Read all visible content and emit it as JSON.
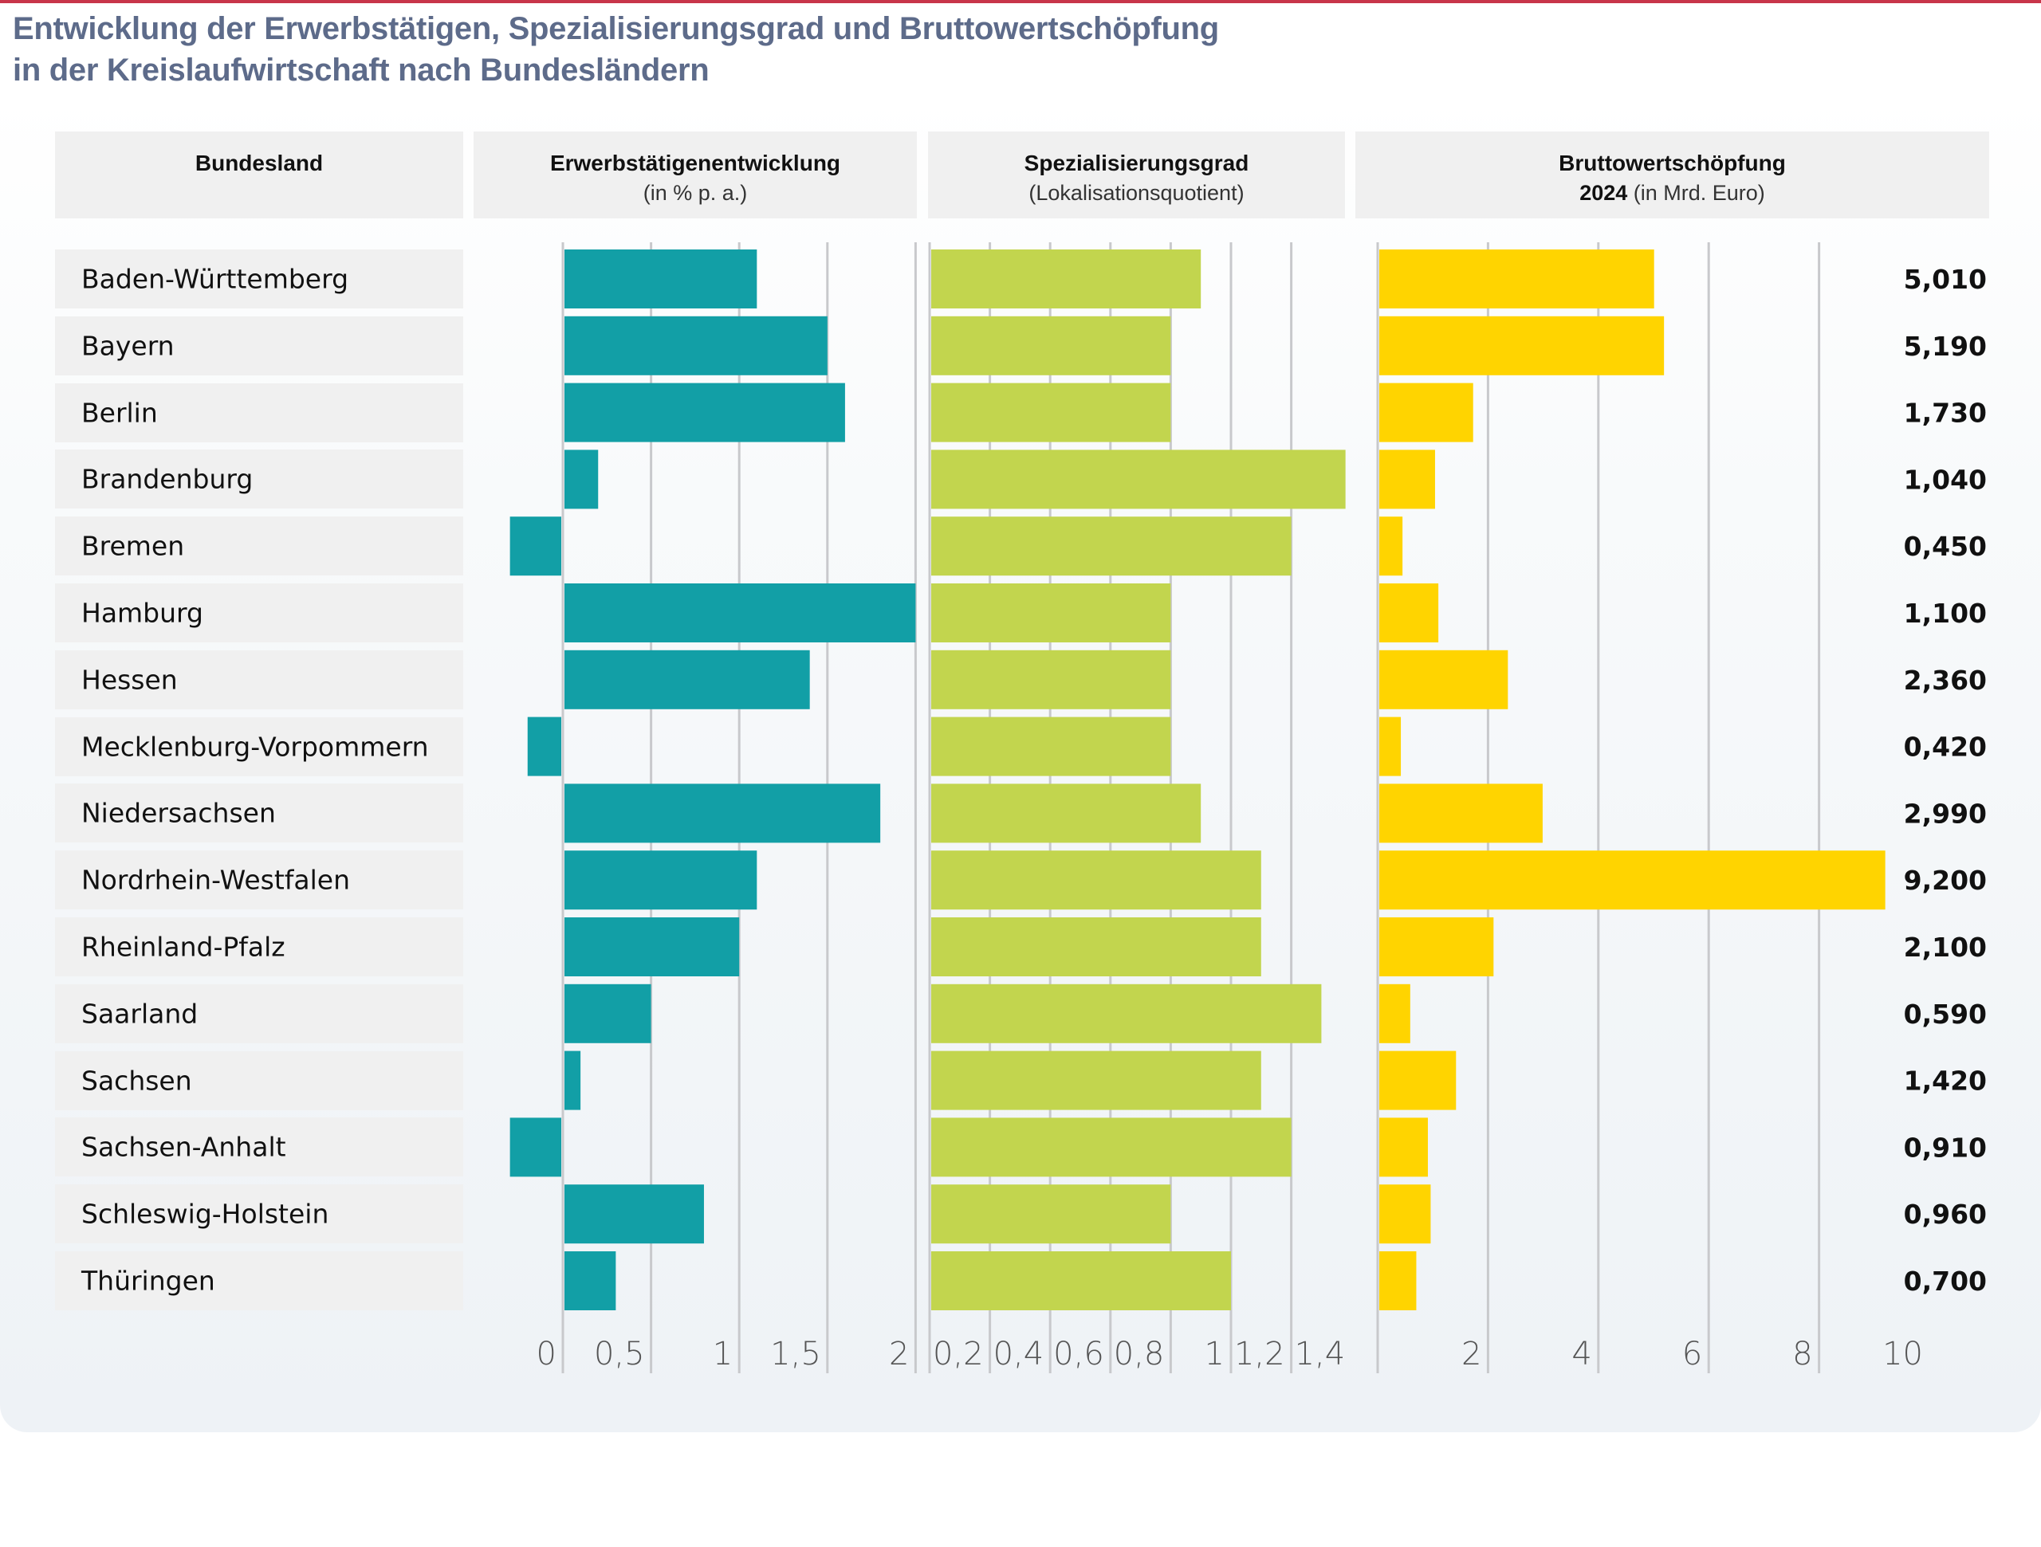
{
  "title": {
    "line1": "Entwicklung der Erwerbstätigen, Spezialisierungsgrad und Bruttowertschöpfung",
    "line2": "in der Kreislaufwirtschaft nach Bundesländern"
  },
  "headers": {
    "bundesland": {
      "title": "Bundesland"
    },
    "erwerb": {
      "title": "Erwerbstätigenentwicklung",
      "subtitle": "(in % p. a.)"
    },
    "spez": {
      "title": "Spezialisierungsgrad",
      "subtitle": "(Lokalisationsquotient)"
    },
    "bws": {
      "title": "Bruttowertschöpfung",
      "subtitle_bold": "2024",
      "subtitle": " (in Mrd. Euro)"
    }
  },
  "colors": {
    "accent_line": "#c8364a",
    "title": "#5d6b8a",
    "erwerb_bar": "#129fa6",
    "spez_bar": "#c2d54e",
    "bws_bar": "#ffd400",
    "grid": "#c8c9cc"
  },
  "chart_data": [
    {
      "type": "bar",
      "title": "Erwerbstätigenentwicklung",
      "xlabel": "in % p. a.",
      "orientation": "horizontal",
      "categories": [
        "Baden-Württemberg",
        "Bayern",
        "Berlin",
        "Brandenburg",
        "Bremen",
        "Hamburg",
        "Hessen",
        "Mecklenburg-Vorpommern",
        "Niedersachsen",
        "Nordrhein-Westfalen",
        "Rheinland-Pfalz",
        "Saarland",
        "Sachsen",
        "Sachsen-Anhalt",
        "Schleswig-Holstein",
        "Thüringen"
      ],
      "values": [
        1.1,
        1.5,
        1.6,
        0.2,
        -0.3,
        2.0,
        1.4,
        -0.2,
        1.8,
        1.1,
        1.0,
        0.5,
        0.1,
        -0.3,
        0.8,
        0.3
      ],
      "xlim": [
        -0.3,
        2.0
      ],
      "ticks": [
        0,
        0.5,
        1,
        1.5,
        2
      ],
      "tick_labels": [
        "0",
        "0,5",
        "1",
        "1,5",
        "2"
      ],
      "grid": true
    },
    {
      "type": "bar",
      "title": "Spezialisierungsgrad",
      "xlabel": "Lokalisationsquotient",
      "orientation": "horizontal",
      "categories": [
        "Baden-Württemberg",
        "Bayern",
        "Berlin",
        "Brandenburg",
        "Bremen",
        "Hamburg",
        "Hessen",
        "Mecklenburg-Vorpommern",
        "Niedersachsen",
        "Nordrhein-Westfalen",
        "Rheinland-Pfalz",
        "Saarland",
        "Sachsen",
        "Sachsen-Anhalt",
        "Schleswig-Holstein",
        "Thüringen"
      ],
      "values": [
        0.9,
        0.8,
        0.8,
        1.38,
        1.2,
        0.8,
        0.8,
        0.8,
        0.9,
        1.1,
        1.1,
        1.3,
        1.1,
        1.2,
        0.8,
        1.0
      ],
      "xlim": [
        0,
        1.4
      ],
      "ticks": [
        0.2,
        0.4,
        0.6,
        0.8,
        1,
        1.2,
        1.4
      ],
      "tick_labels": [
        "0,2",
        "0,4",
        "0,6",
        "0,8",
        "1",
        "1,2",
        "1,4"
      ],
      "gridlines": [
        0,
        0.2,
        0.4,
        0.6,
        0.8,
        1,
        1.2
      ],
      "grid": true
    },
    {
      "type": "bar",
      "title": "Bruttowertschöpfung 2024",
      "xlabel": "in Mrd. Euro",
      "orientation": "horizontal",
      "categories": [
        "Baden-Württemberg",
        "Bayern",
        "Berlin",
        "Brandenburg",
        "Bremen",
        "Hamburg",
        "Hessen",
        "Mecklenburg-Vorpommern",
        "Niedersachsen",
        "Nordrhein-Westfalen",
        "Rheinland-Pfalz",
        "Saarland",
        "Sachsen",
        "Sachsen-Anhalt",
        "Schleswig-Holstein",
        "Thüringen"
      ],
      "values": [
        5.01,
        5.19,
        1.73,
        1.04,
        0.45,
        1.1,
        2.36,
        0.42,
        2.99,
        9.2,
        2.1,
        0.59,
        1.42,
        0.91,
        0.96,
        0.7
      ],
      "value_labels": [
        "5,010",
        "5,190",
        "1,730",
        "1,040",
        "0,450",
        "1,100",
        "2,360",
        "0,420",
        "2,990",
        "9,200",
        "2,100",
        "0,590",
        "1,420",
        "0,910",
        "0,960",
        "0,700"
      ],
      "xlim": [
        0,
        10
      ],
      "ticks": [
        2,
        4,
        6,
        8,
        10
      ],
      "tick_labels": [
        "2",
        "4",
        "6",
        "8",
        "10"
      ],
      "gridlines": [
        0,
        2,
        4,
        6,
        8
      ],
      "grid": true
    }
  ]
}
